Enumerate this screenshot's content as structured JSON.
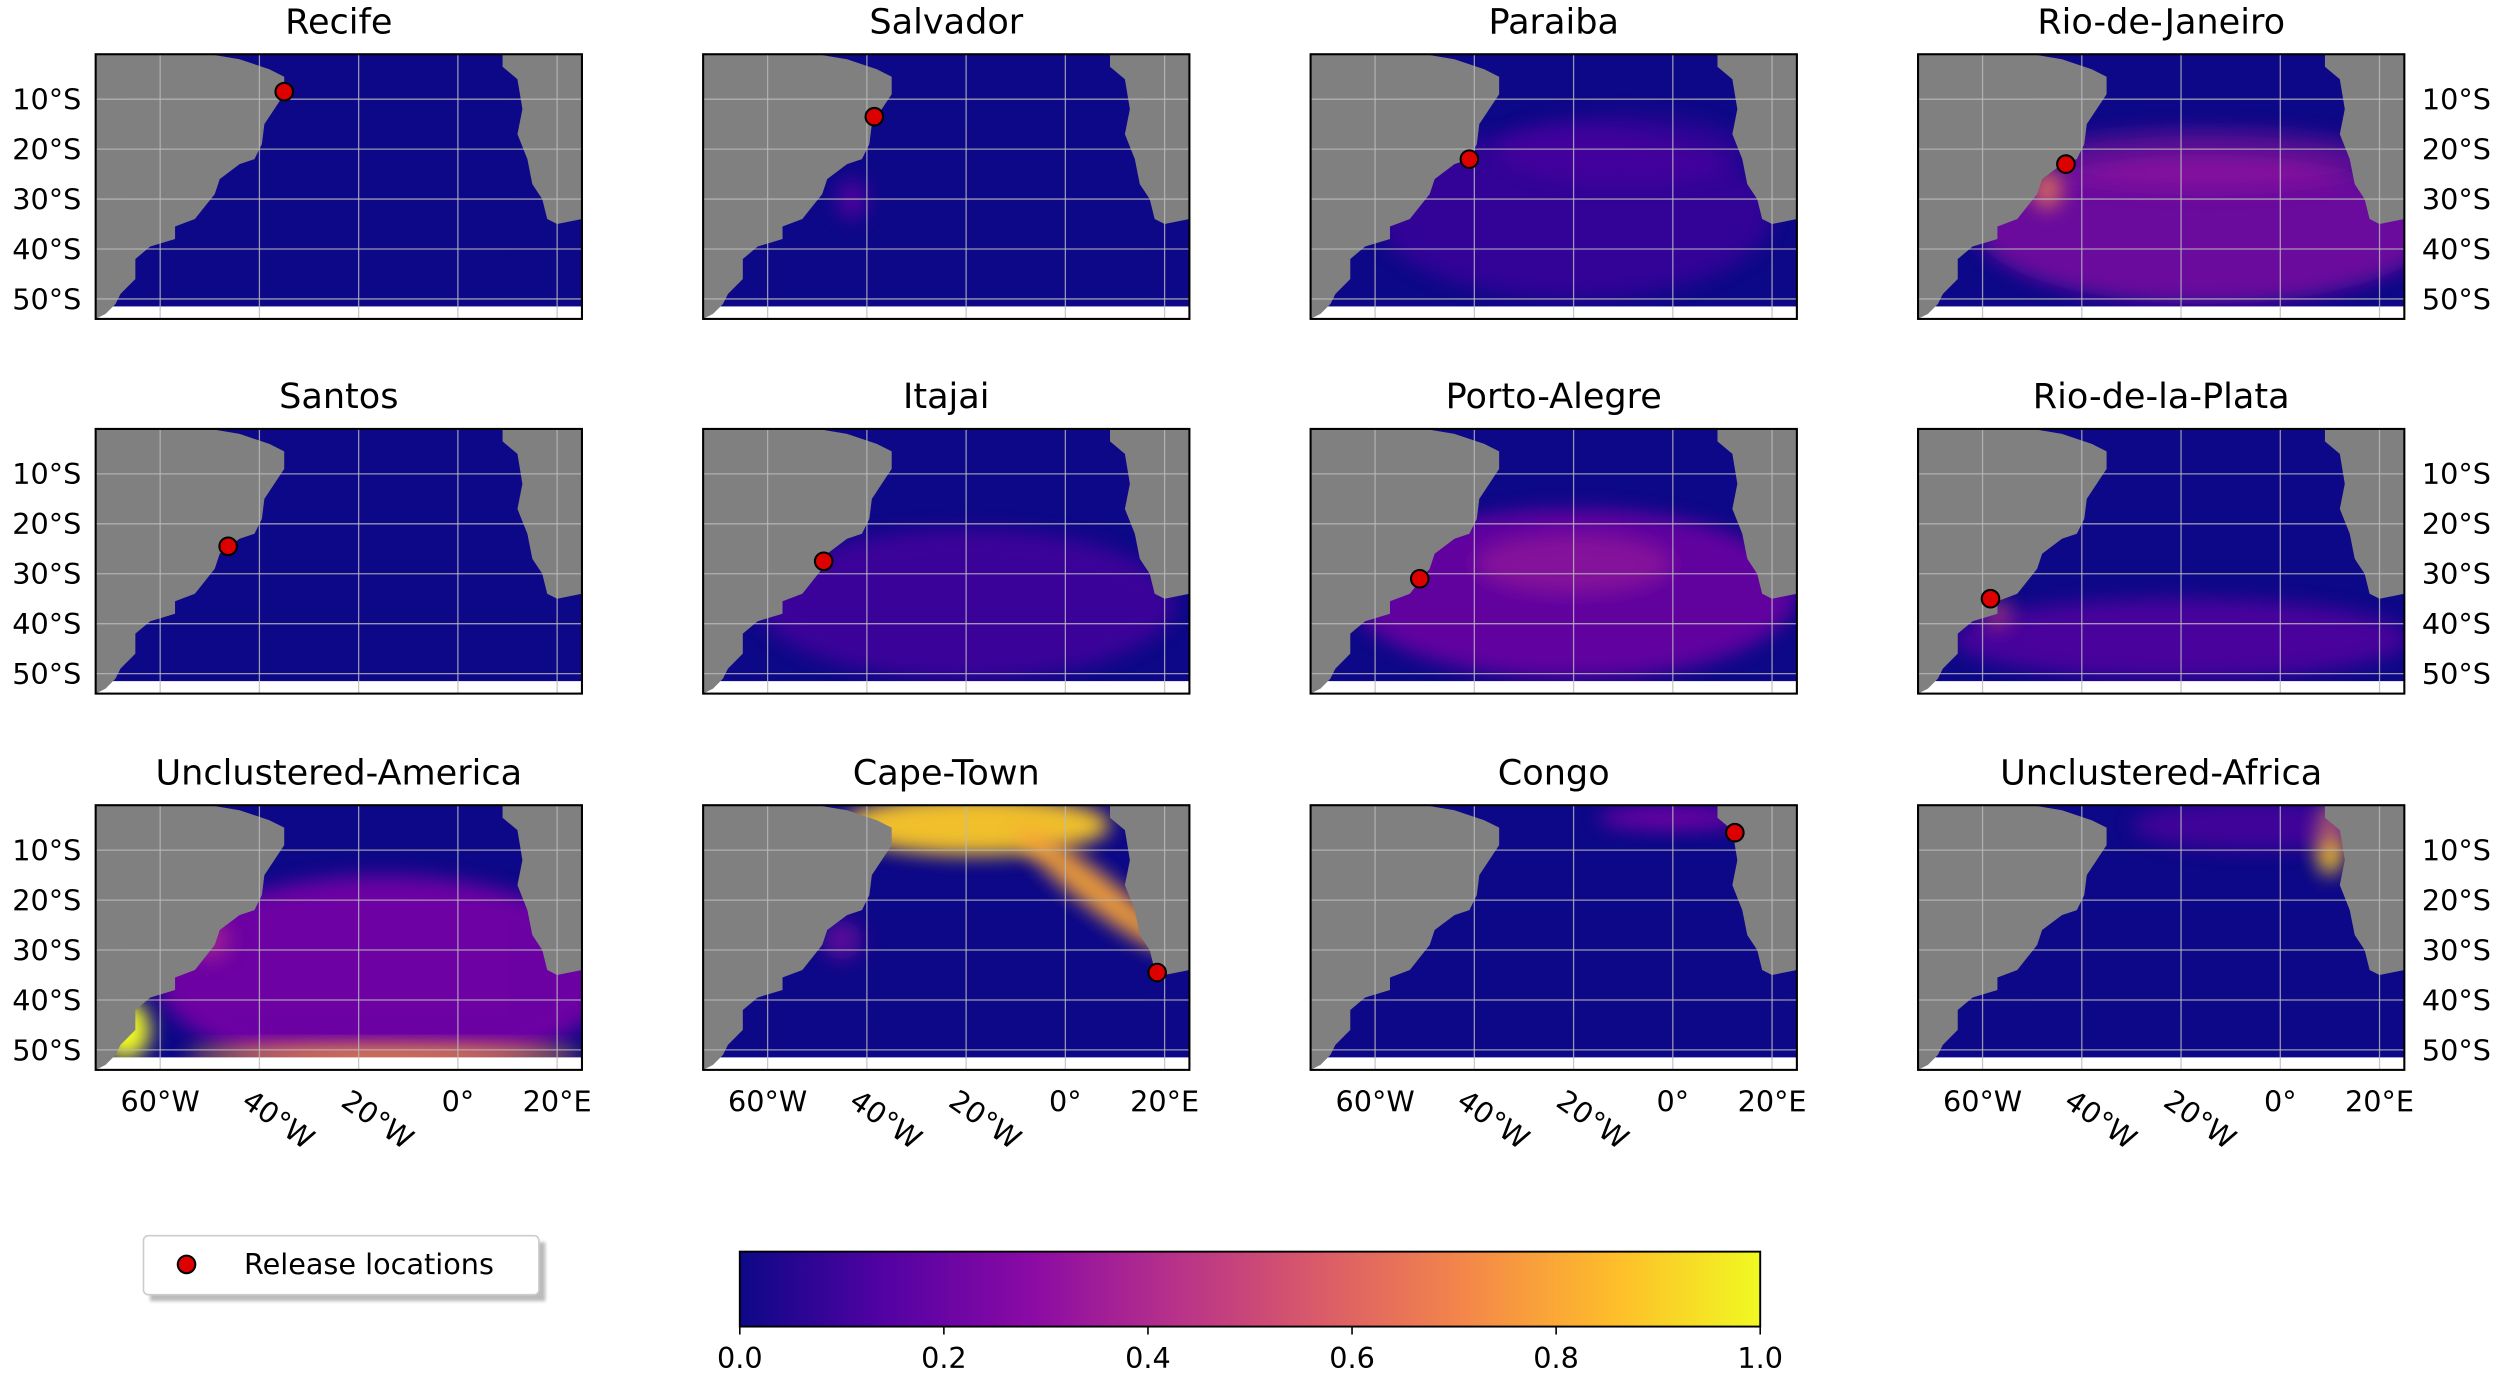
{
  "chart_data": {
    "type": "map",
    "panels": [
      {
        "title": "Recife",
        "release": {
          "x": -35,
          "y": -8.5
        }
      },
      {
        "title": "Salvador",
        "release": {
          "x": -38.5,
          "y": -13.5
        }
      },
      {
        "title": "Paraiba",
        "release": {
          "x": -41,
          "y": -22
        }
      },
      {
        "title": "Rio-de-Janeiro",
        "release": {
          "x": -43.2,
          "y": -23
        }
      },
      {
        "title": "Santos",
        "release": {
          "x": -46.3,
          "y": -24.5
        }
      },
      {
        "title": "Itajai",
        "release": {
          "x": -48.7,
          "y": -27.5
        }
      },
      {
        "title": "Porto-Alegre",
        "release": {
          "x": -51,
          "y": -31
        }
      },
      {
        "title": "Rio-de-la-Plata",
        "release": {
          "x": -58.4,
          "y": -35
        }
      },
      {
        "title": "Unclustered-America"
      },
      {
        "title": "Cape-Town",
        "release": {
          "x": 18.5,
          "y": -34.5
        }
      },
      {
        "title": "Congo",
        "release": {
          "x": 12.5,
          "y": -6.5
        }
      },
      {
        "title": "Unclustered-Africa"
      }
    ],
    "xlim": [
      -73,
      25
    ],
    "ylim": [
      -54,
      -1
    ],
    "xticks": [
      {
        "value": -60,
        "label": "60°W"
      },
      {
        "value": -40,
        "label": "40°W"
      },
      {
        "value": -20,
        "label": "20°W"
      },
      {
        "value": 0,
        "label": "0°"
      },
      {
        "value": 20,
        "label": "20°E"
      }
    ],
    "yticks": [
      {
        "value": -10,
        "label": "10°S"
      },
      {
        "value": -20,
        "label": "20°S"
      },
      {
        "value": -30,
        "label": "30°S"
      },
      {
        "value": -40,
        "label": "40°S"
      },
      {
        "value": -50,
        "label": "50°S"
      }
    ],
    "grid": true,
    "ocean_color": "#0d0887",
    "land_color": "#808080",
    "marker_color": "#dd0000",
    "legend": {
      "label": "Release locations",
      "position": "lower left"
    },
    "colorbar": {
      "xlim": [
        0,
        1
      ],
      "xticks": [
        {
          "value": 0,
          "label": "0.0"
        },
        {
          "value": 0.2,
          "label": "0.2"
        },
        {
          "value": 0.4,
          "label": "0.4"
        },
        {
          "value": 0.6,
          "label": "0.6"
        },
        {
          "value": 0.8,
          "label": "0.8"
        },
        {
          "value": 1,
          "label": "1.0"
        }
      ],
      "colors": [
        "#0d0887",
        "#5302a3",
        "#8b0aa5",
        "#b83289",
        "#db5c68",
        "#f48849",
        "#febd2a",
        "#f0f921"
      ]
    }
  }
}
